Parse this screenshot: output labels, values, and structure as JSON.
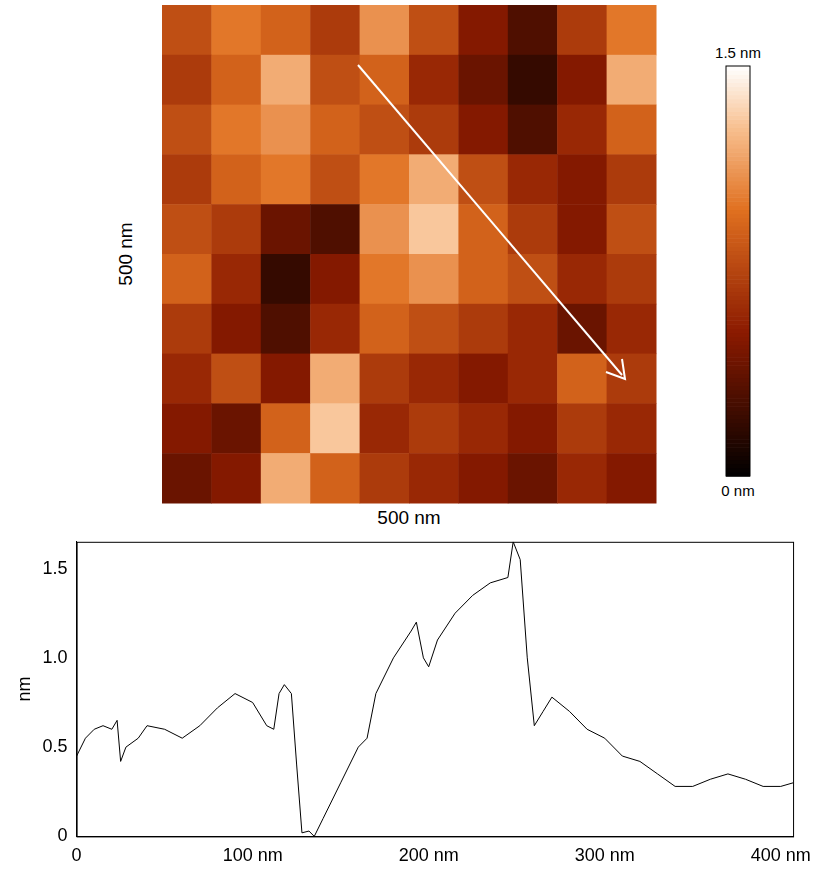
{
  "image": {
    "x_label": "500 nm",
    "y_label": "500 nm",
    "cells": [
      [
        0.8,
        1.0,
        0.9,
        0.7,
        1.1,
        0.8,
        0.5,
        0.3,
        0.7,
        1.0
      ],
      [
        0.7,
        0.9,
        1.2,
        0.8,
        0.9,
        0.6,
        0.4,
        0.2,
        0.5,
        1.2
      ],
      [
        0.8,
        1.0,
        1.1,
        0.9,
        0.8,
        0.7,
        0.5,
        0.3,
        0.6,
        0.9
      ],
      [
        0.7,
        0.9,
        1.0,
        0.8,
        1.0,
        1.2,
        0.8,
        0.6,
        0.5,
        0.7
      ],
      [
        0.8,
        0.7,
        0.4,
        0.3,
        1.1,
        1.3,
        0.9,
        0.7,
        0.5,
        0.8
      ],
      [
        0.9,
        0.6,
        0.2,
        0.5,
        1.0,
        1.1,
        0.9,
        0.8,
        0.6,
        0.7
      ],
      [
        0.7,
        0.5,
        0.3,
        0.6,
        0.9,
        0.8,
        0.7,
        0.6,
        0.4,
        0.6
      ],
      [
        0.6,
        0.8,
        0.5,
        1.2,
        0.7,
        0.6,
        0.5,
        0.6,
        0.9,
        0.7
      ],
      [
        0.5,
        0.4,
        0.9,
        1.3,
        0.6,
        0.7,
        0.6,
        0.5,
        0.7,
        0.6
      ],
      [
        0.4,
        0.5,
        1.2,
        0.9,
        0.7,
        0.6,
        0.5,
        0.4,
        0.6,
        0.5
      ]
    ],
    "color_range": [
      0,
      1.5
    ],
    "color_ticks": [
      {
        "value": 0,
        "label": "0 nm"
      },
      {
        "value": 1.5,
        "label": "1.5 nm"
      }
    ]
  },
  "chart_data": {
    "type": "line",
    "y_label": "nm",
    "color": "#000000",
    "grid": false,
    "x": [
      0,
      5,
      10,
      15,
      20,
      23,
      25,
      28,
      35,
      40,
      50,
      60,
      70,
      80,
      90,
      100,
      108,
      112,
      115,
      118,
      122,
      125,
      128,
      132,
      135,
      140,
      150,
      160,
      165,
      170,
      180,
      190,
      193,
      197,
      200,
      205,
      215,
      225,
      235,
      245,
      248,
      252,
      256,
      260,
      265,
      270,
      280,
      290,
      300,
      310,
      320,
      330,
      340,
      350,
      360,
      370,
      380,
      390,
      400,
      407
    ],
    "values": [
      0.45,
      0.55,
      0.6,
      0.62,
      0.6,
      0.65,
      0.42,
      0.5,
      0.55,
      0.62,
      0.6,
      0.55,
      0.62,
      0.72,
      0.8,
      0.75,
      0.62,
      0.6,
      0.8,
      0.85,
      0.8,
      0.4,
      0.02,
      0.03,
      0.0,
      0.1,
      0.3,
      0.5,
      0.55,
      0.8,
      1.0,
      1.15,
      1.2,
      1.0,
      0.95,
      1.1,
      1.25,
      1.35,
      1.42,
      1.45,
      1.65,
      1.55,
      1.0,
      0.62,
      0.7,
      0.78,
      0.7,
      0.6,
      0.55,
      0.45,
      0.42,
      0.35,
      0.28,
      0.28,
      0.32,
      0.35,
      0.32,
      0.28,
      0.28,
      0.3
    ],
    "xlim": [
      0,
      407
    ],
    "xticks": [
      0,
      {
        "value": 100,
        "label": "100 nm"
      },
      {
        "value": 200,
        "label": "200 nm"
      },
      {
        "value": 300,
        "label": "300 nm"
      },
      {
        "value": 400,
        "label": "400 nm"
      }
    ],
    "ylim": [
      0,
      1.65
    ],
    "yticks": [
      0,
      0.5,
      {
        "value": 1,
        "label": "1.0"
      },
      1.5
    ]
  }
}
